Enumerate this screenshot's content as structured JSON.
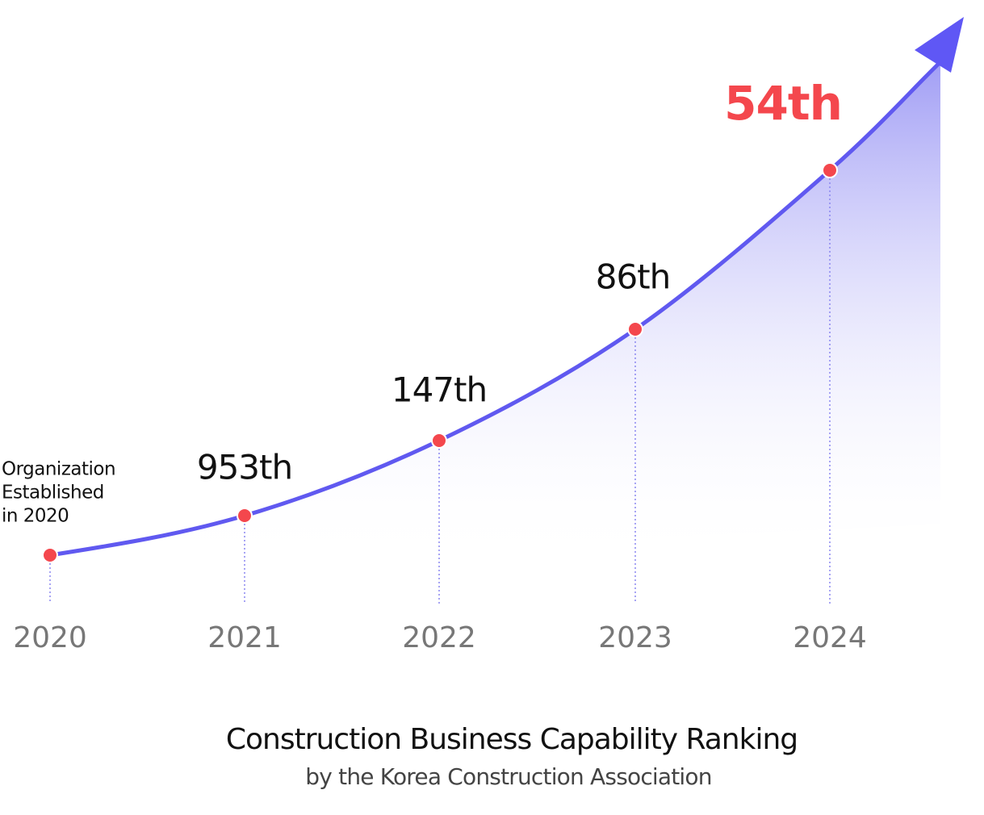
{
  "milestones": [
    {
      "year": "2020",
      "note": [
        "Organization",
        "Established",
        "in 2020"
      ]
    },
    {
      "year": "2021",
      "label": "953th"
    },
    {
      "year": "2022",
      "label": "147th"
    },
    {
      "year": "2023",
      "label": "86th"
    },
    {
      "year": "2024",
      "label": "54th"
    }
  ],
  "footer": {
    "title": "Construction Business Capability Ranking",
    "subtitle": "by the Korea Construction Association"
  }
}
